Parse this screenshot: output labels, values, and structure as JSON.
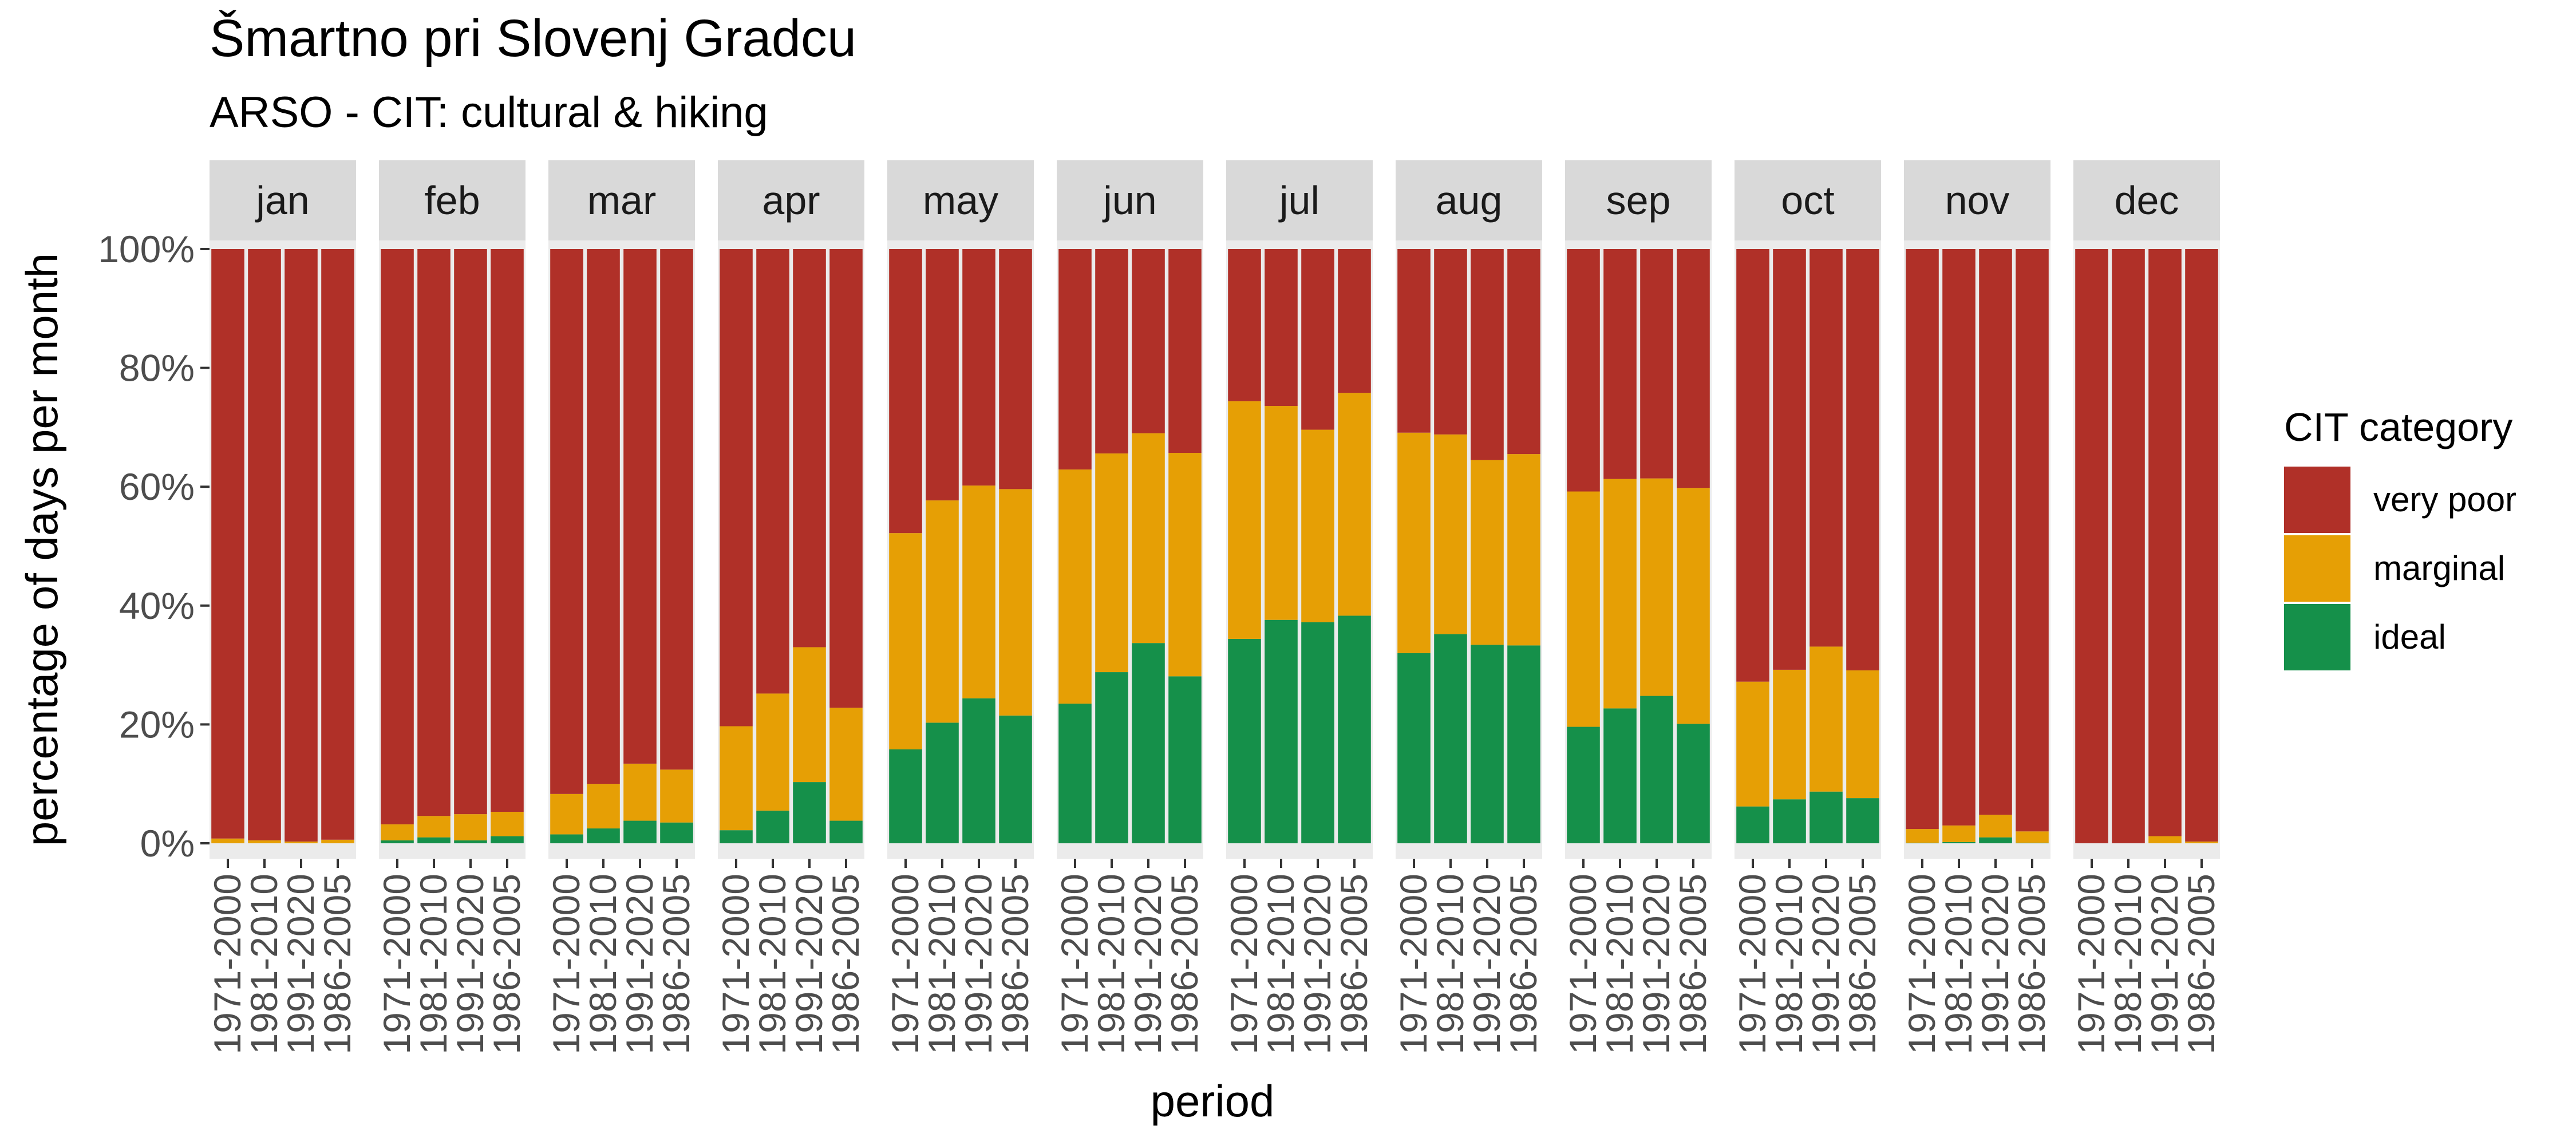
{
  "chart_data": {
    "type": "bar",
    "stacked": true,
    "title": "Šmartno pri Slovenj Gradcu",
    "subtitle": "ARSO - CIT: cultural & hiking",
    "xlabel": "period",
    "ylabel": "percentage of days per month",
    "ylim": [
      0,
      100
    ],
    "y_ticks": [
      "0%",
      "20%",
      "40%",
      "60%",
      "80%",
      "100%"
    ],
    "facets": [
      "jan",
      "feb",
      "mar",
      "apr",
      "may",
      "jun",
      "jul",
      "aug",
      "sep",
      "oct",
      "nov",
      "dec"
    ],
    "categories": [
      "1971-2000",
      "1981-2010",
      "1991-2020",
      "1986-2005"
    ],
    "legend": {
      "title": "CIT category",
      "position": "right"
    },
    "colors": {
      "very poor": "#b03028",
      "marginal": "#e69f05",
      "ideal": "#15904a",
      "strip": "#d9d9d9",
      "panel": "#ebebeb"
    },
    "series": [
      {
        "name": "ideal",
        "values": [
          [
            0,
            0,
            0,
            0
          ],
          [
            0.5,
            1,
            0.5,
            1.2
          ],
          [
            1.5,
            2.5,
            3.8,
            3.5
          ],
          [
            2.2,
            5.5,
            10.3,
            3.8
          ],
          [
            15.8,
            20.3,
            24.4,
            21.5
          ],
          [
            23.5,
            28.8,
            33.7,
            28.1
          ],
          [
            34.4,
            37.6,
            37.2,
            38.3
          ],
          [
            32,
            35.2,
            33.4,
            33.3
          ],
          [
            19.6,
            22.7,
            24.8,
            20.1
          ],
          [
            6.2,
            7.4,
            8.7,
            7.6
          ],
          [
            0.1,
            0.2,
            1,
            0.1
          ],
          [
            0,
            0,
            0,
            0
          ]
        ]
      },
      {
        "name": "marginal",
        "values": [
          [
            0.8,
            0.5,
            0.3,
            0.6
          ],
          [
            2.7,
            3.6,
            4.4,
            4.1
          ],
          [
            6.8,
            7.5,
            9.6,
            8.9
          ],
          [
            17.5,
            19.7,
            22.7,
            19
          ],
          [
            36.4,
            37.4,
            35.8,
            38.1
          ],
          [
            39.4,
            36.8,
            35.3,
            37.6
          ],
          [
            40,
            36,
            32.4,
            37.5
          ],
          [
            37.1,
            33.6,
            31.1,
            32.2
          ],
          [
            39.6,
            38.6,
            36.6,
            39.7
          ],
          [
            21,
            21.8,
            24.4,
            21.5
          ],
          [
            2.3,
            2.8,
            3.8,
            1.9
          ],
          [
            0,
            0,
            1.2,
            0.3
          ]
        ]
      },
      {
        "name": "very poor",
        "values": [
          [
            99.2,
            99.5,
            99.7,
            99.4
          ],
          [
            96.8,
            95.4,
            95.1,
            94.7
          ],
          [
            91.7,
            90,
            86.6,
            87.6
          ],
          [
            80.3,
            74.8,
            67,
            77.2
          ],
          [
            47.8,
            42.3,
            39.8,
            40.4
          ],
          [
            37.1,
            34.4,
            31,
            34.3
          ],
          [
            25.6,
            26.4,
            30.4,
            24.2
          ],
          [
            30.9,
            31.2,
            35.5,
            34.5
          ],
          [
            40.8,
            38.7,
            38.6,
            40.2
          ],
          [
            72.8,
            70.8,
            66.9,
            70.9
          ],
          [
            97.6,
            97,
            95.2,
            98
          ],
          [
            100,
            100,
            98.8,
            99.7
          ]
        ]
      }
    ]
  }
}
